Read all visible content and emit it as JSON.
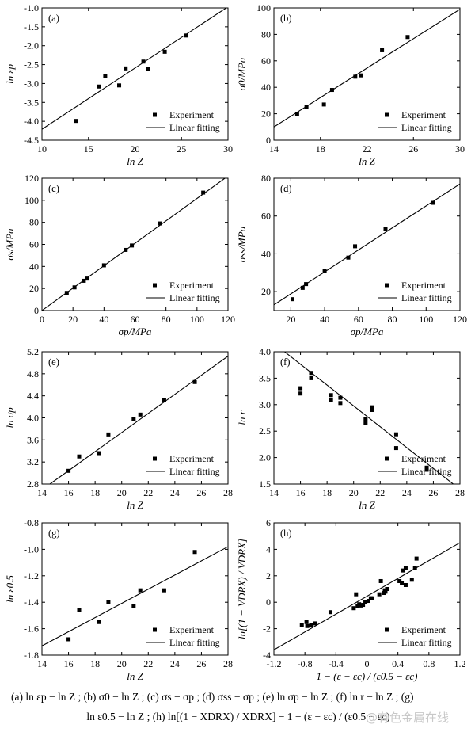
{
  "caption": {
    "line1": "(a)  ln εp − ln Z ;  (b)  σ0 − ln Z ;  (c)  σs − σp ;  (d)  σss − σp ;  (e)  ln σp − ln Z ;  (f)  ln r − ln Z ;  (g)",
    "line2": "ln ε0.5 − ln Z ; (h)  ln[(1 − XDRX) / XDRX] − 1 − (ε − εc) / (ε0.5 − εc)"
  },
  "watermark": "@有色金属在线",
  "chart_data": [
    {
      "panel": "(a)",
      "type": "scatter",
      "xlabel": "ln Z",
      "ylabel": "ln εp",
      "xlim": [
        10,
        30
      ],
      "ylim": [
        -4.5,
        -1.0
      ],
      "xticks": [
        "10",
        "15",
        "20",
        "25",
        "30"
      ],
      "yticks": [
        "-4.5",
        "-4.0",
        "-3.5",
        "-3.0",
        "-2.5",
        "-2.0",
        "-1.5",
        "-1.0"
      ],
      "legend": [
        "Experiment",
        "Linear fitting"
      ],
      "points": [
        [
          13.7,
          -3.99
        ],
        [
          16.1,
          -3.08
        ],
        [
          16.8,
          -2.8
        ],
        [
          18.3,
          -3.05
        ],
        [
          19.0,
          -2.6
        ],
        [
          20.9,
          -2.42
        ],
        [
          21.4,
          -2.62
        ],
        [
          23.2,
          -2.16
        ],
        [
          25.5,
          -1.73
        ]
      ],
      "fit": [
        [
          10,
          -4.21
        ],
        [
          30,
          -0.97
        ]
      ]
    },
    {
      "panel": "(b)",
      "type": "scatter",
      "xlabel": "ln Z",
      "ylabel": "σ0/MPa",
      "xlim": [
        14,
        30
      ],
      "ylim": [
        0,
        100
      ],
      "xticks": [
        "14",
        "18",
        "22",
        "26",
        "30"
      ],
      "yticks": [
        "0",
        "20",
        "40",
        "60",
        "80",
        "100"
      ],
      "legend": [
        "Experiment",
        "Linear fitting"
      ],
      "points": [
        [
          16.0,
          20
        ],
        [
          16.8,
          25
        ],
        [
          18.3,
          27
        ],
        [
          19.0,
          38
        ],
        [
          21.0,
          48
        ],
        [
          21.5,
          49
        ],
        [
          23.3,
          68
        ],
        [
          25.5,
          78
        ]
      ],
      "fit": [
        [
          14,
          10
        ],
        [
          30,
          99
        ]
      ]
    },
    {
      "panel": "(c)",
      "type": "scatter",
      "xlabel": "σp/MPa",
      "ylabel": "σs/MPa",
      "xlim": [
        0,
        120
      ],
      "ylim": [
        0,
        120
      ],
      "xticks": [
        "0",
        "20",
        "40",
        "60",
        "80",
        "100",
        "120"
      ],
      "yticks": [
        "0",
        "20",
        "40",
        "60",
        "80",
        "100",
        "120"
      ],
      "legend": [
        "Experiment",
        "Linear fitting"
      ],
      "points": [
        [
          16,
          16
        ],
        [
          21,
          21
        ],
        [
          27,
          27
        ],
        [
          29,
          29
        ],
        [
          40,
          41
        ],
        [
          54,
          55
        ],
        [
          58,
          59
        ],
        [
          76,
          79
        ],
        [
          104,
          107
        ]
      ],
      "fit": [
        [
          0,
          0
        ],
        [
          120,
          122
        ]
      ]
    },
    {
      "panel": "(d)",
      "type": "scatter",
      "xlabel": "σp/MPa",
      "ylabel": "σss/MPa",
      "xlim": [
        10,
        120
      ],
      "ylim": [
        10,
        80
      ],
      "xticks": [
        "20",
        "40",
        "60",
        "80",
        "100",
        "120"
      ],
      "yticks": [
        "20",
        "40",
        "60",
        "80"
      ],
      "legend": [
        "Experiment",
        "Linear fitting"
      ],
      "points": [
        [
          21,
          16
        ],
        [
          27,
          22
        ],
        [
          29,
          24
        ],
        [
          40,
          31
        ],
        [
          54,
          38
        ],
        [
          58,
          44
        ],
        [
          76,
          53
        ],
        [
          104,
          67
        ]
      ],
      "fit": [
        [
          10,
          13
        ],
        [
          120,
          77
        ]
      ]
    },
    {
      "panel": "(e)",
      "type": "scatter",
      "xlabel": "ln Z",
      "ylabel": "ln σp",
      "xlim": [
        14,
        28
      ],
      "ylim": [
        2.8,
        5.2
      ],
      "xticks": [
        "14",
        "16",
        "18",
        "20",
        "22",
        "24",
        "26",
        "28"
      ],
      "yticks": [
        "2.8",
        "3.2",
        "3.6",
        "4.0",
        "4.4",
        "4.8",
        "5.2"
      ],
      "legend": [
        "Experiment",
        "Linear fitting"
      ],
      "points": [
        [
          16.0,
          3.04
        ],
        [
          16.8,
          3.3
        ],
        [
          18.3,
          3.36
        ],
        [
          19.0,
          3.7
        ],
        [
          20.9,
          3.98
        ],
        [
          21.4,
          4.06
        ],
        [
          23.2,
          4.33
        ],
        [
          25.5,
          4.65
        ]
      ],
      "fit": [
        [
          14.6,
          2.8
        ],
        [
          28,
          5.12
        ]
      ]
    },
    {
      "panel": "(f)",
      "type": "scatter",
      "xlabel": "ln Z",
      "ylabel": "ln r",
      "xlim": [
        14,
        28
      ],
      "ylim": [
        1.5,
        4.0
      ],
      "xticks": [
        "14",
        "16",
        "18",
        "20",
        "22",
        "24",
        "26",
        "28"
      ],
      "yticks": [
        "1.5",
        "2.0",
        "2.5",
        "3.0",
        "3.5",
        "4.0"
      ],
      "legend": [
        "Experiment",
        "Linear fitting"
      ],
      "points": [
        [
          16.0,
          3.31
        ],
        [
          16.0,
          3.21
        ],
        [
          16.8,
          3.6
        ],
        [
          16.8,
          3.5
        ],
        [
          18.3,
          3.18
        ],
        [
          18.3,
          3.09
        ],
        [
          19.0,
          3.13
        ],
        [
          19.0,
          3.03
        ],
        [
          20.9,
          2.72
        ],
        [
          20.9,
          2.65
        ],
        [
          21.4,
          2.95
        ],
        [
          21.4,
          2.9
        ],
        [
          23.2,
          2.44
        ],
        [
          23.2,
          2.18
        ],
        [
          25.5,
          1.81
        ],
        [
          25.5,
          1.77
        ]
      ],
      "fit": [
        [
          14.8,
          4.0
        ],
        [
          27.5,
          1.5
        ]
      ]
    },
    {
      "panel": "(g)",
      "type": "scatter",
      "xlabel": "ln Z",
      "ylabel": "ln ε0.5",
      "xlim": [
        14,
        28
      ],
      "ylim": [
        -1.8,
        -0.8
      ],
      "xticks": [
        "14",
        "16",
        "18",
        "20",
        "22",
        "24",
        "26",
        "28"
      ],
      "yticks": [
        "-1.8",
        "-1.6",
        "-1.4",
        "-1.2",
        "-1.0",
        "-0.8"
      ],
      "legend": [
        "Experiment",
        "Linear fitting"
      ],
      "points": [
        [
          16.0,
          -1.68
        ],
        [
          16.8,
          -1.46
        ],
        [
          18.3,
          -1.55
        ],
        [
          19.0,
          -1.4
        ],
        [
          20.9,
          -1.43
        ],
        [
          21.4,
          -1.31
        ],
        [
          23.2,
          -1.31
        ],
        [
          25.5,
          -1.02
        ]
      ],
      "fit": [
        [
          14,
          -1.73
        ],
        [
          28,
          -0.98
        ]
      ]
    },
    {
      "panel": "(h)",
      "type": "scatter",
      "xlabel": "1 − (ε − εc) / (ε0.5 − εc)",
      "ylabel": "ln[(1 − VDRX) / VDRX]",
      "xlim": [
        -1.2,
        1.2
      ],
      "ylim": [
        -4,
        6
      ],
      "xticks": [
        "-1.2",
        "-0.8",
        "-0.4",
        "0",
        "0.4",
        "0.8",
        "1.2"
      ],
      "yticks": [
        "-4",
        "-2",
        "0",
        "2",
        "4",
        "6"
      ],
      "legend": [
        "Experiment",
        "Linear fitting"
      ],
      "points": [
        [
          -0.84,
          -1.75
        ],
        [
          -0.78,
          -1.5
        ],
        [
          -0.77,
          -1.8
        ],
        [
          -0.72,
          -1.75
        ],
        [
          -0.67,
          -1.6
        ],
        [
          -0.47,
          -0.75
        ],
        [
          -0.17,
          -0.45
        ],
        [
          -0.14,
          0.6
        ],
        [
          -0.12,
          -0.3
        ],
        [
          -0.1,
          -0.15
        ],
        [
          -0.08,
          -0.25
        ],
        [
          -0.05,
          -0.2
        ],
        [
          -0.02,
          0.0
        ],
        [
          0.02,
          0.1
        ],
        [
          0.05,
          0.3
        ],
        [
          0.07,
          0.3
        ],
        [
          0.16,
          0.6
        ],
        [
          0.18,
          1.6
        ],
        [
          0.22,
          0.7
        ],
        [
          0.23,
          0.9
        ],
        [
          0.24,
          0.8
        ],
        [
          0.26,
          1.0
        ],
        [
          0.42,
          1.6
        ],
        [
          0.45,
          1.45
        ],
        [
          0.47,
          2.4
        ],
        [
          0.5,
          2.6
        ],
        [
          0.5,
          1.3
        ],
        [
          0.58,
          1.7
        ],
        [
          0.62,
          2.6
        ],
        [
          0.64,
          3.3
        ]
      ],
      "fit": [
        [
          -1.2,
          -3.6
        ],
        [
          1.2,
          4.5
        ]
      ]
    }
  ]
}
